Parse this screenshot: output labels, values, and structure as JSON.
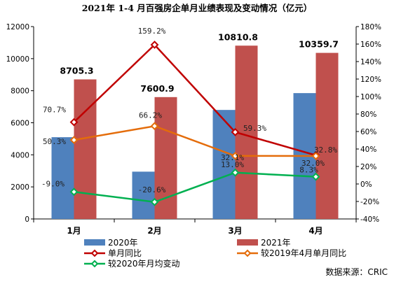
{
  "chart_data": {
    "type": "bar",
    "title": "2021年 1-4 月百强房企单月业绩表现及变动情况（亿元）",
    "categories": [
      "1月",
      "2月",
      "3月",
      "4月"
    ],
    "ylim": [
      0,
      12000
    ],
    "y_ticks": [
      "0",
      "2000",
      "4000",
      "6000",
      "8000",
      "10000",
      "12000"
    ],
    "y2lim": [
      -40,
      180
    ],
    "y2_ticks": [
      "-40%",
      "-20%",
      "0%",
      "20%",
      "40%",
      "60%",
      "80%",
      "100%",
      "120%",
      "140%",
      "160%",
      "180%"
    ],
    "bar_series": [
      {
        "name": "2020年",
        "color": "#4f81bd",
        "values": [
          5100,
          2950,
          6800,
          7850
        ],
        "labels": [
          "",
          "",
          "",
          ""
        ]
      },
      {
        "name": "2021年",
        "color": "#c0504d",
        "values": [
          8705.3,
          7600.9,
          10810.8,
          10359.7
        ],
        "labels": [
          "8705.3",
          "7600.9",
          "10810.8",
          "10359.7"
        ]
      }
    ],
    "line_series": [
      {
        "name": "单月同比",
        "color": "#c00000",
        "marker": "diamond",
        "values": [
          70.7,
          159.2,
          59.3,
          32.8
        ],
        "labels": [
          "70.7%",
          "159.2%",
          "59.3%",
          "32.8%"
        ]
      },
      {
        "name": "较2019年4月单月同比",
        "color": "#e46c0a",
        "marker": "diamond",
        "values": [
          50.3,
          66.2,
          32.1,
          32.0
        ],
        "labels": [
          "50.3%",
          "66.2%",
          "32.1%",
          "32.0%"
        ]
      },
      {
        "name": "较2020年月均变动",
        "color": "#00b050",
        "marker": "diamond",
        "values": [
          -9.0,
          -20.6,
          13.0,
          8.3
        ],
        "labels": [
          "-9.0%",
          "-20.6%",
          "13.0%",
          "8.3%"
        ]
      }
    ],
    "grid": false,
    "legend_position": "bottom"
  },
  "source": "数据来源：CRIC"
}
